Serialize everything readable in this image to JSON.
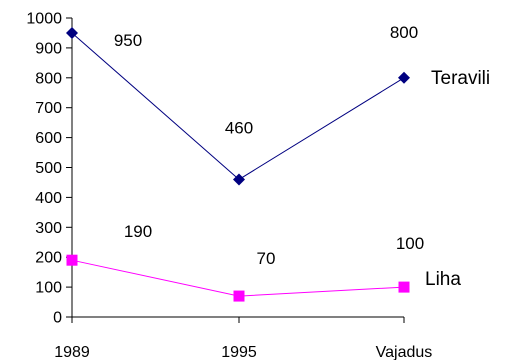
{
  "chart_data": {
    "type": "line",
    "categories": [
      "1989",
      "1995",
      "Vajadus"
    ],
    "series": [
      {
        "name": "Teravili",
        "values": [
          950,
          460,
          800
        ],
        "data_labels": [
          "950",
          "460",
          "800"
        ],
        "color": "#000080",
        "marker": "diamond"
      },
      {
        "name": "Liha",
        "values": [
          190,
          70,
          100
        ],
        "data_labels": [
          "190",
          "70",
          "100"
        ],
        "color": "#ff00ff",
        "marker": "square"
      }
    ],
    "y_ticks": [
      "0",
      "100",
      "200",
      "300",
      "400",
      "500",
      "600",
      "700",
      "800",
      "900",
      "1000"
    ],
    "ylim": [
      0,
      1000
    ],
    "legend": "series names at line ends (right)",
    "grid": false
  }
}
